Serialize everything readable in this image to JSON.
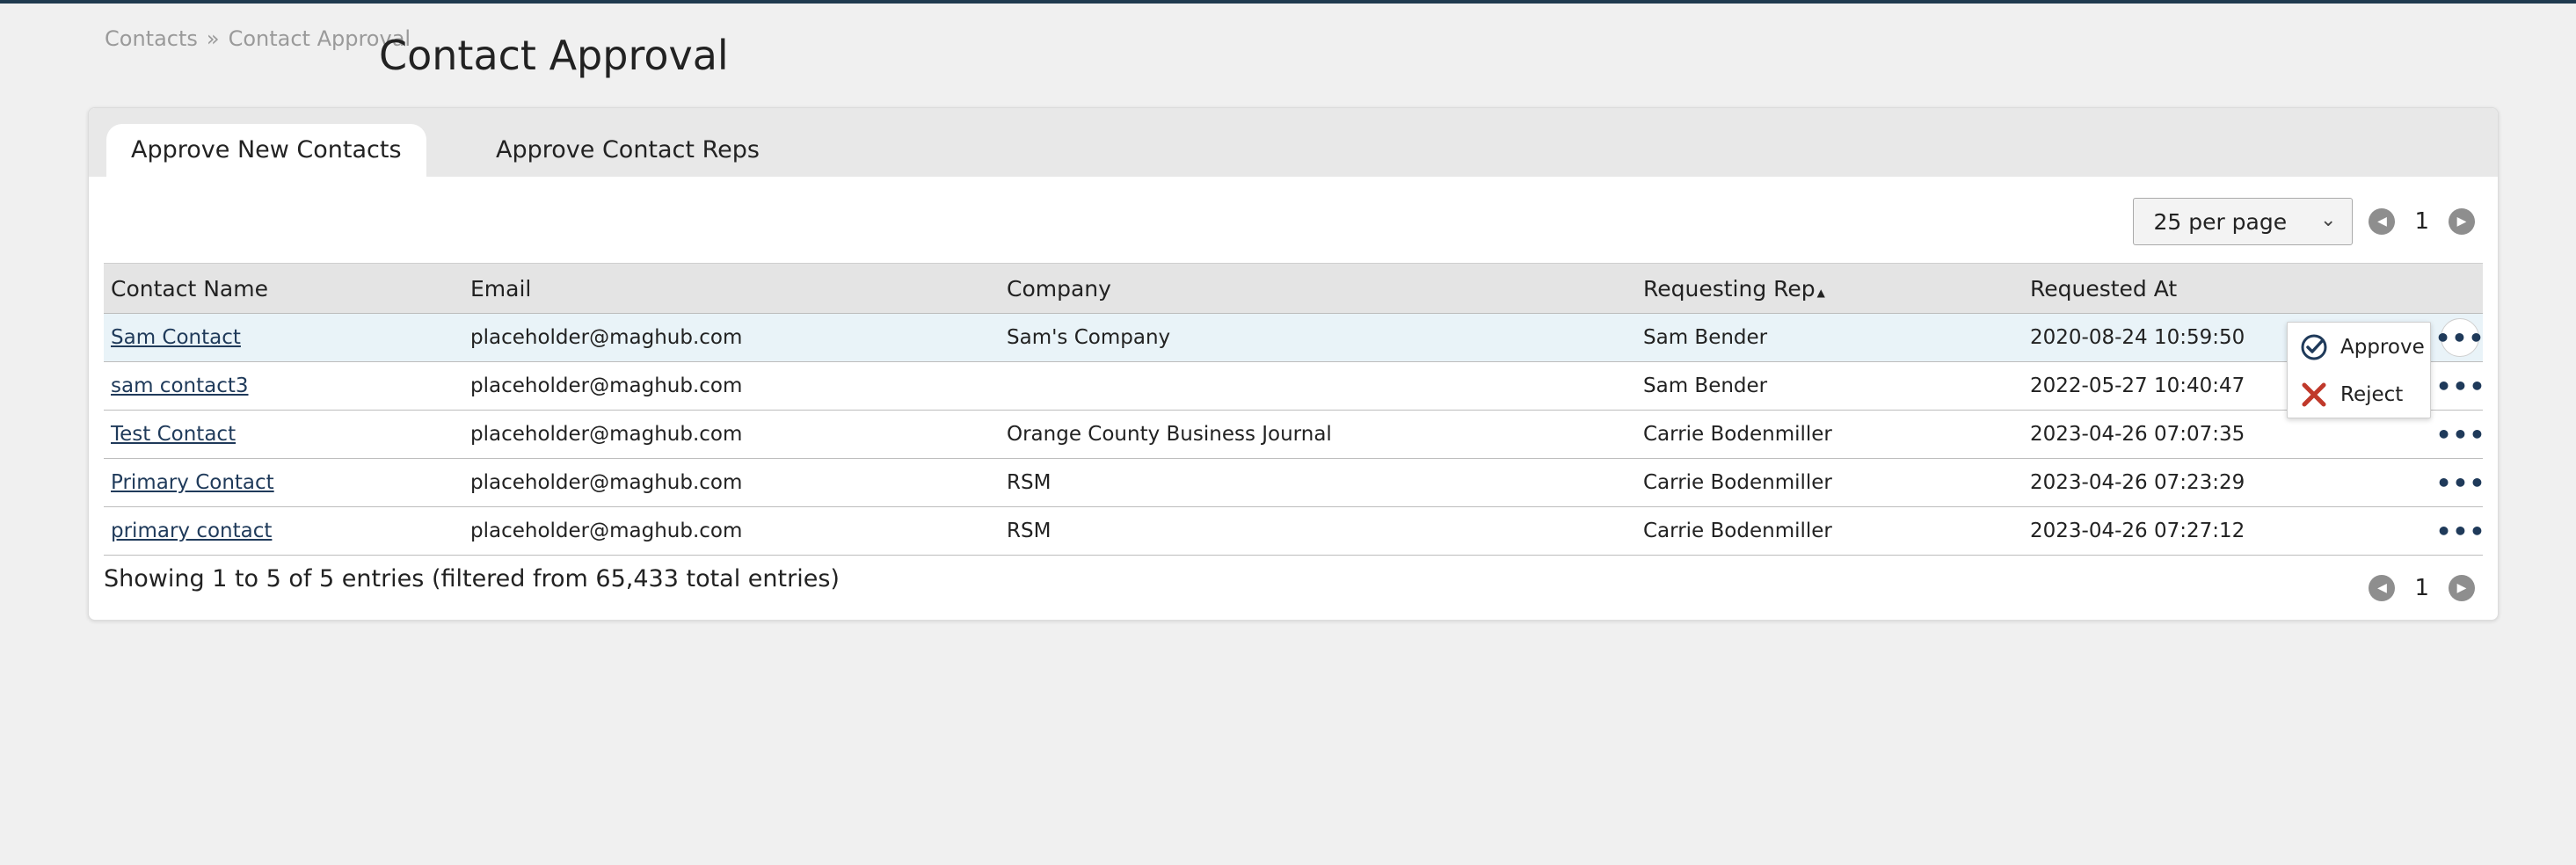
{
  "breadcrumb": {
    "parent": "Contacts",
    "separator": "»",
    "current": "Contact Approval"
  },
  "page_title": "Contact Approval",
  "tabs": [
    {
      "label": "Approve New Contacts",
      "active": true
    },
    {
      "label": "Approve Contact Reps",
      "active": false
    }
  ],
  "pagination": {
    "per_page": "25 per page",
    "page": "1"
  },
  "table": {
    "columns": [
      "Contact Name",
      "Email",
      "Company",
      "Requesting Rep",
      "Requested At"
    ],
    "sort": {
      "column": "Requesting Rep",
      "direction": "ascending"
    },
    "rows": [
      {
        "name": "Sam Contact",
        "email": "placeholder@maghub.com",
        "company": "Sam's Company",
        "rep": "Sam Bender",
        "requested_at": "2020-08-24 10:59:50"
      },
      {
        "name": "sam contact3",
        "email": "placeholder@maghub.com",
        "company": "",
        "rep": "Sam Bender",
        "requested_at": "2022-05-27 10:40:47"
      },
      {
        "name": "Test Contact",
        "email": "placeholder@maghub.com",
        "company": "Orange County Business Journal",
        "rep": "Carrie Bodenmiller",
        "requested_at": "2023-04-26 07:07:35"
      },
      {
        "name": "Primary Contact",
        "email": "placeholder@maghub.com",
        "company": "RSM",
        "rep": "Carrie Bodenmiller",
        "requested_at": "2023-04-26 07:23:29"
      },
      {
        "name": "primary contact",
        "email": "placeholder@maghub.com",
        "company": "RSM",
        "rep": "Carrie Bodenmiller",
        "requested_at": "2023-04-26 07:27:12"
      }
    ]
  },
  "footer": {
    "info": "Showing 1 to 5 of 5 entries (filtered from 65,433 total entries)"
  },
  "row_menu": {
    "approve": "Approve",
    "reject": "Reject"
  },
  "icons": {
    "row_actions": "ellipsis-icon",
    "approve": "check-circle-icon",
    "reject": "x-icon",
    "prev": "chevron-left-icon",
    "next": "chevron-right-icon",
    "dropdown": "chevron-down-icon"
  },
  "colors": {
    "topbar": "#1f3a4f",
    "link": "#1f3a5a",
    "highlight_row": "#e9f3f8",
    "reject": "#c0392b"
  }
}
